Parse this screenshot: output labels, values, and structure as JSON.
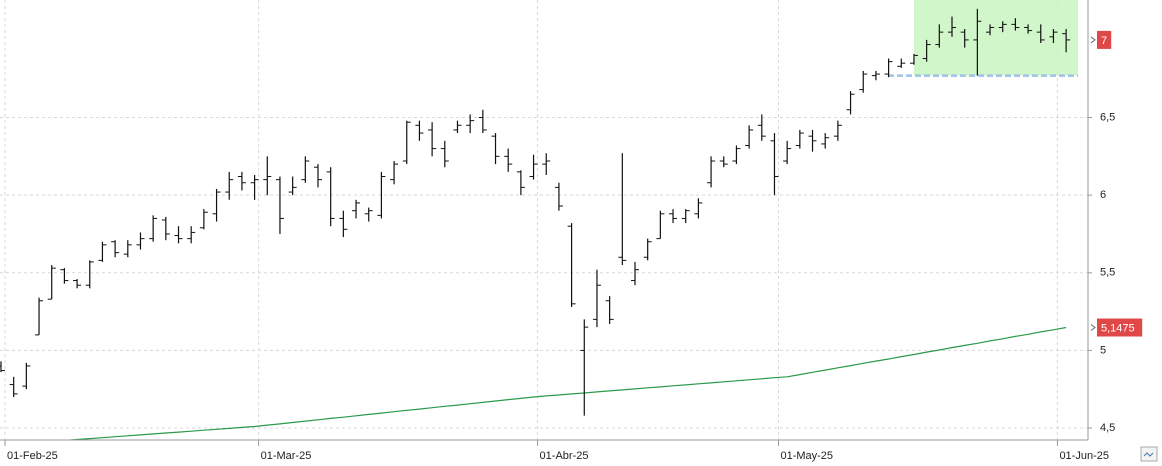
{
  "chart_data": {
    "type": "ohlc",
    "categories": [
      "01-Feb-25",
      null,
      null,
      null,
      null,
      null,
      null,
      null,
      null,
      null,
      null,
      null,
      null,
      null,
      null,
      null,
      null,
      null,
      null,
      null,
      "01-Mar-25",
      null,
      null,
      null,
      null,
      null,
      null,
      null,
      null,
      null,
      null,
      null,
      null,
      null,
      null,
      null,
      null,
      null,
      null,
      null,
      null,
      null,
      "01-Abr-25",
      null,
      null,
      null,
      null,
      null,
      null,
      null,
      null,
      null,
      null,
      null,
      null,
      null,
      null,
      null,
      null,
      null,
      null,
      "01-May-25",
      null,
      null,
      null,
      null,
      null,
      null,
      null,
      null,
      null,
      null,
      null,
      null,
      null,
      null,
      null,
      null,
      null,
      null,
      null,
      null,
      null,
      "01-Jun-25",
      null
    ],
    "open": [
      4.9,
      4.78,
      4.77,
      5.1,
      5.33,
      5.52,
      5.45,
      5.42,
      5.58,
      5.7,
      5.62,
      5.68,
      5.72,
      5.84,
      5.74,
      5.72,
      5.79,
      5.88,
      6.02,
      6.12,
      6.08,
      6.1,
      6.1,
      6.02,
      6.1,
      6.18,
      6.15,
      5.85,
      5.9,
      5.88,
      5.87,
      6.1,
      6.22,
      6.45,
      6.42,
      6.3,
      6.42,
      6.45,
      6.5,
      6.38,
      6.25,
      6.15,
      6.12,
      6.2,
      6.05,
      5.8,
      5.0,
      5.2,
      5.32,
      5.6,
      5.45,
      5.6,
      5.72,
      5.88,
      5.85,
      5.88,
      6.08,
      6.22,
      6.22,
      6.32,
      6.45,
      6.35,
      6.22,
      6.32,
      6.38,
      6.33,
      6.38,
      6.55,
      6.68,
      6.77,
      6.78,
      6.83,
      6.85,
      6.88,
      6.97,
      7.05,
      7.05,
      7.0,
      7.05,
      7.08,
      7.1,
      7.08,
      7.05,
      7.02,
      7.04
    ],
    "high": [
      4.93,
      4.83,
      4.92,
      5.34,
      5.55,
      5.53,
      5.46,
      5.58,
      5.7,
      5.71,
      5.71,
      5.76,
      5.87,
      5.86,
      5.8,
      5.8,
      5.91,
      6.04,
      6.15,
      6.15,
      6.13,
      6.25,
      6.12,
      6.12,
      6.25,
      6.2,
      6.18,
      5.9,
      5.97,
      5.92,
      6.15,
      6.22,
      6.48,
      6.48,
      6.47,
      6.35,
      6.48,
      6.52,
      6.55,
      6.4,
      6.3,
      6.16,
      6.26,
      6.27,
      6.08,
      5.82,
      5.2,
      5.52,
      5.35,
      6.27,
      5.57,
      5.72,
      5.9,
      5.91,
      5.91,
      5.98,
      6.25,
      6.25,
      6.32,
      6.45,
      6.52,
      6.4,
      6.35,
      6.42,
      6.42,
      6.4,
      6.48,
      6.67,
      6.8,
      6.8,
      6.88,
      6.88,
      6.91,
      7.0,
      7.1,
      7.15,
      7.07,
      7.2,
      7.1,
      7.12,
      7.14,
      7.1,
      7.1,
      7.07,
      7.07
    ],
    "low": [
      4.86,
      4.7,
      4.75,
      5.1,
      5.33,
      5.43,
      5.4,
      5.4,
      5.57,
      5.6,
      5.6,
      5.65,
      5.7,
      5.71,
      5.69,
      5.69,
      5.78,
      5.83,
      5.97,
      6.03,
      5.97,
      6.0,
      5.75,
      6.0,
      6.08,
      6.05,
      5.8,
      5.73,
      5.85,
      5.83,
      5.85,
      6.07,
      6.2,
      6.35,
      6.25,
      6.18,
      6.4,
      6.4,
      6.4,
      6.2,
      6.15,
      6.0,
      6.1,
      6.13,
      5.9,
      5.28,
      4.58,
      5.15,
      5.17,
      5.55,
      5.42,
      5.58,
      5.72,
      5.82,
      5.82,
      5.85,
      6.05,
      6.18,
      6.2,
      6.3,
      6.35,
      6.0,
      6.2,
      6.3,
      6.28,
      6.3,
      6.35,
      6.52,
      6.66,
      6.74,
      6.76,
      6.82,
      6.84,
      6.86,
      6.95,
      7.02,
      6.95,
      6.77,
      7.03,
      7.05,
      7.06,
      7.04,
      6.98,
      6.98,
      6.92
    ],
    "close": [
      4.87,
      4.72,
      4.9,
      5.32,
      5.53,
      5.45,
      5.42,
      5.57,
      5.68,
      5.63,
      5.68,
      5.72,
      5.85,
      5.75,
      5.72,
      5.76,
      5.89,
      6.02,
      6.1,
      6.08,
      6.1,
      6.12,
      5.85,
      6.05,
      6.22,
      6.1,
      5.85,
      5.78,
      5.95,
      5.9,
      6.12,
      6.2,
      6.47,
      6.4,
      6.3,
      6.22,
      6.45,
      6.48,
      6.42,
      6.25,
      6.2,
      6.05,
      6.2,
      6.22,
      5.93,
      5.3,
      5.15,
      5.42,
      5.2,
      5.58,
      5.52,
      5.7,
      5.88,
      5.85,
      5.9,
      5.95,
      6.22,
      6.2,
      6.3,
      6.42,
      6.38,
      6.12,
      6.3,
      6.4,
      6.35,
      6.37,
      6.45,
      6.65,
      6.78,
      6.78,
      6.86,
      6.85,
      6.9,
      6.97,
      7.05,
      7.08,
      7.0,
      7.12,
      7.08,
      7.1,
      7.08,
      7.06,
      7.0,
      7.05,
      7.0
    ],
    "color": "#111111",
    "moving_average": {
      "color": "#2a9a4a",
      "values": [
        4.39,
        4.396,
        4.402,
        4.408,
        4.414,
        4.42,
        4.426,
        4.432,
        4.438,
        4.444,
        4.45,
        4.456,
        4.462,
        4.468,
        4.474,
        4.48,
        4.486,
        4.492,
        4.498,
        4.504,
        4.51,
        4.519,
        4.527,
        4.536,
        4.545,
        4.553,
        4.562,
        4.57,
        4.579,
        4.588,
        4.596,
        4.605,
        4.614,
        4.622,
        4.631,
        4.64,
        4.648,
        4.657,
        4.665,
        4.674,
        4.683,
        4.691,
        4.7,
        4.707,
        4.713,
        4.72,
        4.726,
        4.733,
        4.739,
        4.746,
        4.752,
        4.759,
        4.765,
        4.772,
        4.778,
        4.785,
        4.791,
        4.798,
        4.804,
        4.811,
        4.817,
        4.824,
        4.83,
        4.844,
        4.859,
        4.873,
        4.888,
        4.902,
        4.917,
        4.931,
        4.945,
        4.96,
        4.974,
        4.989,
        5.003,
        5.018,
        5.032,
        5.046,
        5.061,
        5.075,
        5.09,
        5.104,
        5.119,
        5.133,
        5.1475
      ]
    },
    "price_markers": [
      {
        "value": 7,
        "label": "7"
      },
      {
        "value": 5.1475,
        "label": "5,1475"
      }
    ],
    "support_line": 6.77,
    "ylim": [
      4.423,
      7.257
    ],
    "yticks": [
      {
        "value": 4.5,
        "label": "4,5"
      },
      5,
      {
        "value": 5.5,
        "label": "5,5"
      },
      6,
      {
        "value": 6.5,
        "label": "6,5"
      }
    ],
    "grid": true
  }
}
